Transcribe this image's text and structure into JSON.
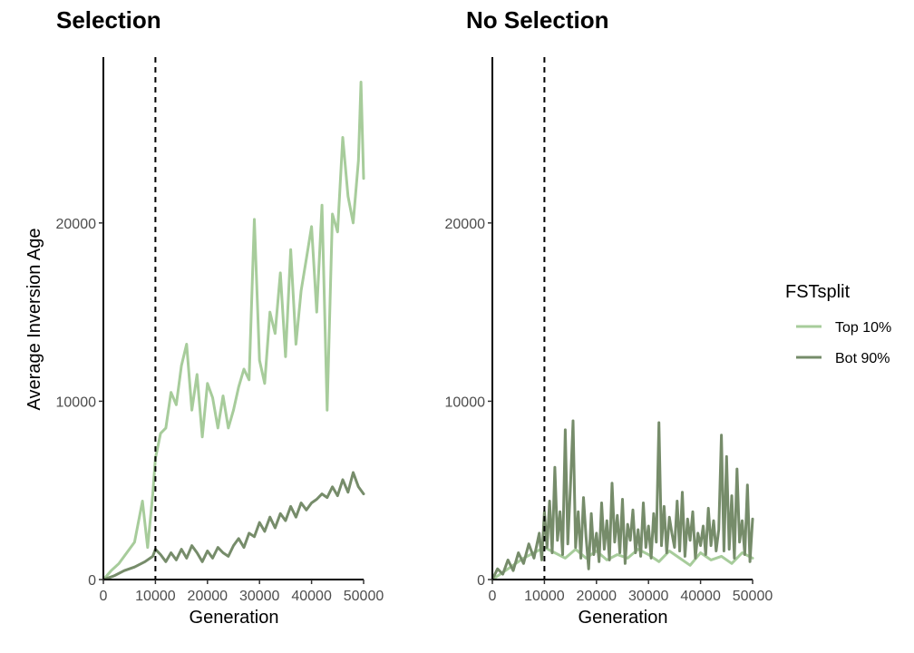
{
  "colors": {
    "top10": "#a7cc9b",
    "bot90": "#768c6a"
  },
  "legend": {
    "title": "FSTsplit",
    "entries": [
      {
        "label": "Top 10%",
        "color": "#a7cc9b"
      },
      {
        "label": "Bot 90%",
        "color": "#768c6a"
      }
    ]
  },
  "chart_data": [
    {
      "type": "line",
      "title": "Selection",
      "xlabel": "Generation",
      "ylabel": "Average Inversion Age",
      "xlim": [
        0,
        50000
      ],
      "ylim": [
        0,
        29300
      ],
      "xticks": [
        0,
        10000,
        20000,
        30000,
        40000,
        50000
      ],
      "yticks": [
        0,
        10000,
        20000
      ],
      "ytick_labels": [
        "0",
        "10000",
        "20000"
      ],
      "show_ytick_labels": true,
      "vline_x": 10000,
      "series": [
        {
          "name": "Top 10%",
          "color": "#a7cc9b",
          "x": [
            0,
            1500,
            3000,
            4500,
            6000,
            7500,
            8500,
            9500,
            10000,
            11000,
            12000,
            13000,
            14000,
            15000,
            16000,
            17000,
            18000,
            19000,
            20000,
            21000,
            22000,
            23000,
            24000,
            25000,
            26000,
            27000,
            28000,
            29000,
            30000,
            31000,
            32000,
            33000,
            34000,
            35000,
            36000,
            37000,
            38000,
            39000,
            40000,
            41000,
            42000,
            43000,
            44000,
            45000,
            46000,
            47000,
            48000,
            49000,
            49500,
            50000
          ],
          "values": [
            0,
            500,
            900,
            1500,
            2100,
            4400,
            1800,
            4800,
            6800,
            8200,
            8500,
            10500,
            9800,
            12000,
            13200,
            9500,
            11500,
            8000,
            11000,
            10200,
            8500,
            10300,
            8500,
            9500,
            10800,
            11800,
            11200,
            20200,
            12300,
            11000,
            15000,
            13800,
            17200,
            12500,
            18500,
            13200,
            16200,
            18000,
            19800,
            15000,
            21000,
            9500,
            20500,
            19500,
            24800,
            21500,
            20000,
            23500,
            27900,
            22500
          ]
        },
        {
          "name": "Bot 90%",
          "color": "#768c6a",
          "x": [
            0,
            2000,
            4000,
            6000,
            8000,
            9500,
            10000,
            11000,
            12000,
            13000,
            14000,
            15000,
            16000,
            17000,
            18000,
            19000,
            20000,
            21000,
            22000,
            23000,
            24000,
            25000,
            26000,
            27000,
            28000,
            29000,
            30000,
            31000,
            32000,
            33000,
            34000,
            35000,
            36000,
            37000,
            38000,
            39000,
            40000,
            41000,
            42000,
            43000,
            44000,
            45000,
            46000,
            47000,
            48000,
            49000,
            50000
          ],
          "values": [
            0,
            200,
            500,
            700,
            1000,
            1300,
            1700,
            1400,
            1000,
            1500,
            1100,
            1700,
            1200,
            1900,
            1500,
            1000,
            1600,
            1200,
            1800,
            1500,
            1300,
            1900,
            2300,
            1800,
            2600,
            2400,
            3200,
            2700,
            3500,
            2900,
            3700,
            3300,
            4100,
            3500,
            4300,
            3900,
            4300,
            4500,
            4800,
            4600,
            5200,
            4700,
            5600,
            4900,
            6000,
            5200,
            4800
          ]
        }
      ]
    },
    {
      "type": "line",
      "title": "No Selection",
      "xlabel": "Generation",
      "ylabel": "",
      "xlim": [
        0,
        50000
      ],
      "ylim": [
        0,
        29300
      ],
      "xticks": [
        0,
        10000,
        20000,
        30000,
        40000,
        50000
      ],
      "yticks": [
        0,
        10000,
        20000
      ],
      "ytick_labels": [
        "0",
        "10000",
        "20000"
      ],
      "show_ytick_labels": true,
      "vline_x": 10000,
      "series": [
        {
          "name": "Top 10%",
          "color": "#a7cc9b",
          "x": [
            0,
            2000,
            4000,
            6000,
            8000,
            10000,
            12000,
            14000,
            16000,
            18000,
            20000,
            22000,
            24000,
            26000,
            28000,
            30000,
            32000,
            34000,
            36000,
            38000,
            40000,
            42000,
            44000,
            46000,
            48000,
            50000
          ],
          "values": [
            0,
            400,
            800,
            1200,
            1500,
            1800,
            1500,
            1200,
            1700,
            1200,
            1600,
            1100,
            1400,
            1200,
            1700,
            1400,
            1000,
            1600,
            1200,
            800,
            1500,
            1100,
            1300,
            900,
            1500,
            1200
          ]
        },
        {
          "name": "Bot 90%",
          "color": "#768c6a",
          "x": [
            0,
            1000,
            2000,
            3000,
            4000,
            5000,
            6000,
            7000,
            8000,
            9000,
            9500,
            10000,
            10500,
            11000,
            11500,
            12000,
            12500,
            13000,
            13500,
            14000,
            14500,
            15000,
            15500,
            16000,
            16500,
            17000,
            17500,
            18000,
            18500,
            19000,
            19500,
            20000,
            20500,
            21000,
            21500,
            22000,
            22500,
            23000,
            23500,
            24000,
            24500,
            25000,
            25500,
            26000,
            26500,
            27000,
            27500,
            28000,
            28500,
            29000,
            29500,
            30000,
            30500,
            31000,
            31500,
            32000,
            32500,
            33000,
            33500,
            34000,
            34500,
            35000,
            35500,
            36000,
            36500,
            37000,
            37500,
            38000,
            38500,
            39000,
            39500,
            40000,
            40500,
            41000,
            41500,
            42000,
            42500,
            43000,
            43500,
            44000,
            44500,
            45000,
            45500,
            46000,
            46500,
            47000,
            47500,
            48000,
            48500,
            49000,
            49500,
            50000
          ],
          "values": [
            0,
            600,
            300,
            1100,
            500,
            1500,
            900,
            2000,
            1200,
            2600,
            1100,
            3800,
            1800,
            4400,
            1500,
            6300,
            2200,
            3800,
            1400,
            8400,
            2000,
            5200,
            8900,
            1800,
            3800,
            1200,
            4600,
            2400,
            600,
            3700,
            1400,
            2600,
            1000,
            4300,
            1700,
            3300,
            1100,
            5400,
            2100,
            3600,
            1500,
            4500,
            900,
            3100,
            2200,
            3900,
            1500,
            2800,
            1300,
            4300,
            1800,
            3000,
            1200,
            3700,
            2100,
            8800,
            1900,
            4100,
            1500,
            3500,
            2600,
            1800,
            4400,
            1600,
            4900,
            1300,
            3400,
            2200,
            3800,
            1200,
            2600,
            1900,
            3000,
            1400,
            4000,
            1900,
            3300,
            1600,
            2800,
            8100,
            1600,
            6900,
            1700,
            4700,
            1200,
            6200,
            2100,
            3300,
            1400,
            5300,
            1000,
            3400
          ]
        }
      ]
    }
  ]
}
